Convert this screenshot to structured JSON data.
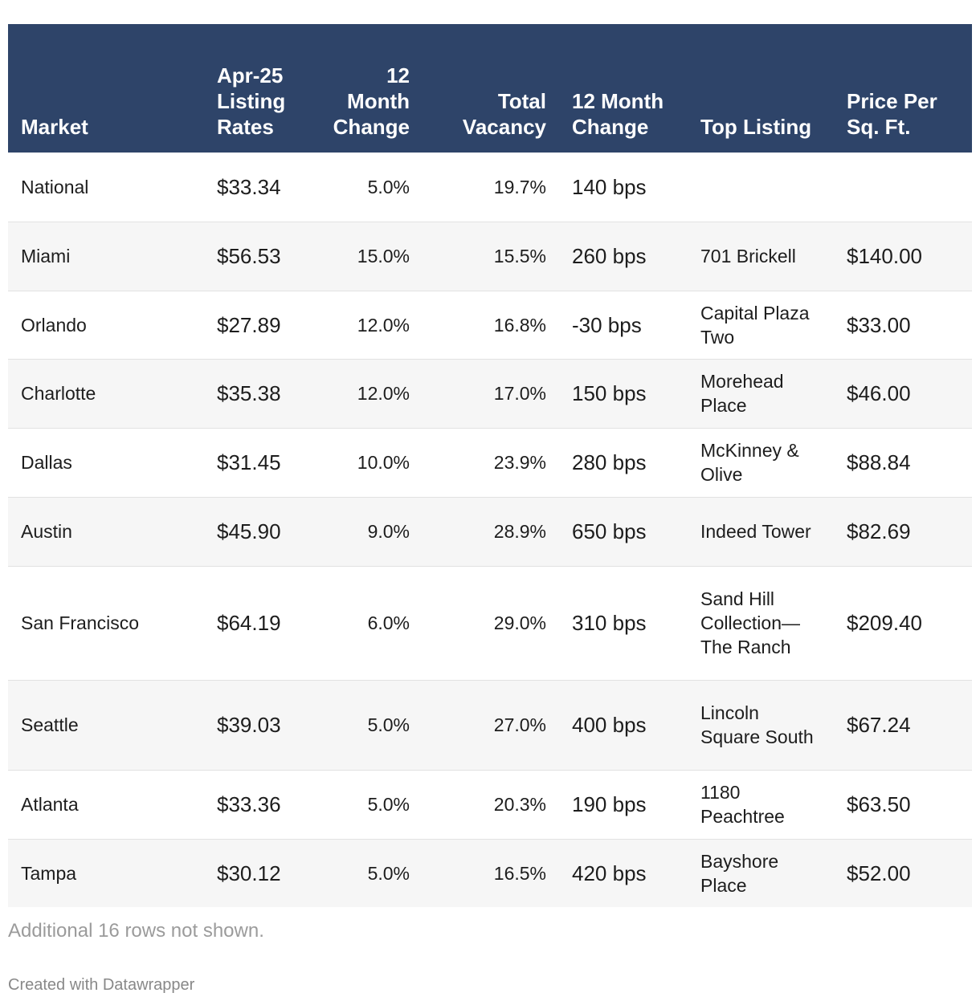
{
  "chart_data": {
    "type": "table",
    "columns": [
      "Market",
      "Apr-25 Listing Rates",
      "12 Month Change",
      "Total Vacancy",
      "12 Month Change",
      "Top Listing",
      "Price Per Sq. Ft."
    ],
    "rows": [
      [
        "National",
        "$33.34",
        "5.0%",
        "19.7%",
        "140 bps",
        "",
        ""
      ],
      [
        "Miami",
        "$56.53",
        "15.0%",
        "15.5%",
        "260 bps",
        "701 Brickell",
        "$140.00"
      ],
      [
        "Orlando",
        "$27.89",
        "12.0%",
        "16.8%",
        "-30 bps",
        "Capital Plaza Two",
        "$33.00"
      ],
      [
        "Charlotte",
        "$35.38",
        "12.0%",
        "17.0%",
        "150 bps",
        "Morehead Place",
        "$46.00"
      ],
      [
        "Dallas",
        "$31.45",
        "10.0%",
        "23.9%",
        "280 bps",
        "McKinney & Olive",
        "$88.84"
      ],
      [
        "Austin",
        "$45.90",
        "9.0%",
        "28.9%",
        "650 bps",
        "Indeed Tower",
        "$82.69"
      ],
      [
        "San Francisco",
        "$64.19",
        "6.0%",
        "29.0%",
        "310 bps",
        "Sand Hill Collection—The Ranch",
        "$209.40"
      ],
      [
        "Seattle",
        "$39.03",
        "5.0%",
        "27.0%",
        "400 bps",
        "Lincoln Square South",
        "$67.24"
      ],
      [
        "Atlanta",
        "$33.36",
        "5.0%",
        "20.3%",
        "190 bps",
        "1180 Peachtree",
        "$63.50"
      ],
      [
        "Tampa",
        "$30.12",
        "5.0%",
        "16.5%",
        "420 bps",
        "Bayshore Place",
        "$52.00"
      ]
    ]
  },
  "footer": {
    "note": "Additional 16 rows not shown.",
    "credit": "Created with Datawrapper"
  },
  "colors": {
    "header_bg": "#2e4469",
    "row_alt": "#f6f6f6"
  }
}
